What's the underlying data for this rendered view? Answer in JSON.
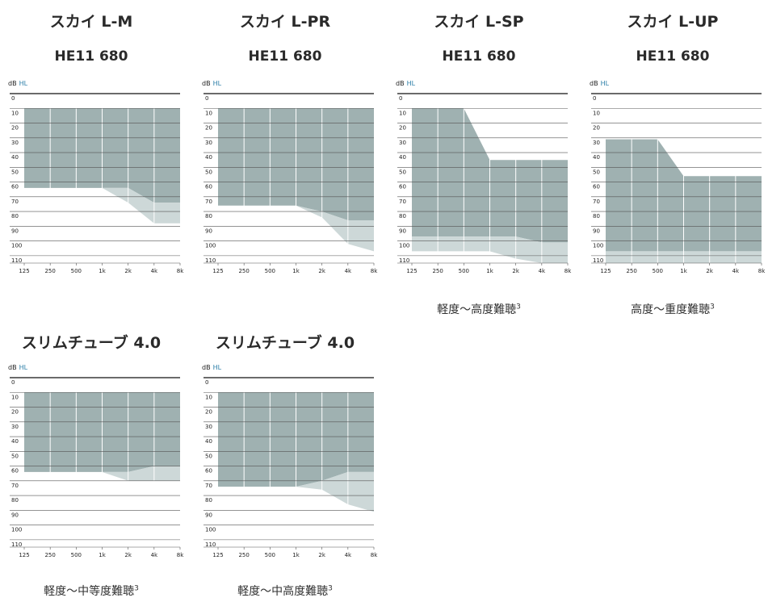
{
  "colors": {
    "primary_fill": "#9fb1b1",
    "secondary_fill": "#cdd8d8",
    "grid_line": "#555555",
    "vertical_line": "#ffffff",
    "text": "#222222"
  },
  "panels": [
    {
      "title": "スカイ L-M",
      "subtitle": "HE11 680",
      "caption": "",
      "caption_sup": ""
    },
    {
      "title": "スカイ L-PR",
      "subtitle": "HE11 680",
      "caption": "",
      "caption_sup": ""
    },
    {
      "title": "スカイ L-SP",
      "subtitle": "HE11 680",
      "caption": "軽度～高度難聴",
      "caption_sup": "3"
    },
    {
      "title": "スカイ L-UP",
      "subtitle": "HE11 680",
      "caption": "高度～重度難聴",
      "caption_sup": "3"
    },
    {
      "title": "スリムチューブ 4.0",
      "subtitle": "",
      "caption": "軽度～中等度難聴",
      "caption_sup": "3"
    },
    {
      "title": "スリムチューブ 4.0",
      "subtitle": "",
      "caption": "軽度～中高度難聴",
      "caption_sup": "3"
    }
  ],
  "chart_data": [
    {
      "type": "area",
      "title": "スカイ L-M",
      "subtitle": "HE11 680",
      "ylabel": "dB HL",
      "x_ticks": [
        "125",
        "250",
        "500",
        "1k",
        "2k",
        "4k",
        "8k"
      ],
      "y_ticks": [
        0,
        10,
        20,
        30,
        40,
        50,
        60,
        70,
        80,
        90,
        100,
        110
      ],
      "y_reversed": true,
      "ylim": [
        0,
        115
      ],
      "series": [
        {
          "role": "primary",
          "top": [
            10,
            10,
            10,
            10,
            10,
            10,
            10
          ],
          "bottom": [
            64,
            64,
            64,
            64,
            64,
            74,
            74
          ]
        },
        {
          "role": "secondary",
          "top": [
            64,
            64,
            64,
            64,
            64,
            74,
            74
          ],
          "bottom": [
            64,
            64,
            64,
            64,
            74,
            88,
            88
          ]
        }
      ]
    },
    {
      "type": "area",
      "title": "スカイ L-PR",
      "subtitle": "HE11 680",
      "ylabel": "dB HL",
      "x_ticks": [
        "125",
        "250",
        "500",
        "1k",
        "2k",
        "4k",
        "8k"
      ],
      "y_ticks": [
        0,
        10,
        20,
        30,
        40,
        50,
        60,
        70,
        80,
        90,
        100,
        110
      ],
      "y_reversed": true,
      "ylim": [
        0,
        115
      ],
      "series": [
        {
          "role": "primary",
          "top": [
            10,
            10,
            10,
            10,
            10,
            10,
            10
          ],
          "bottom": [
            76,
            76,
            76,
            76,
            80,
            86,
            86
          ]
        },
        {
          "role": "secondary",
          "top": [
            76,
            76,
            76,
            76,
            80,
            86,
            86
          ],
          "bottom": [
            76,
            76,
            76,
            76,
            84,
            102,
            107
          ]
        }
      ]
    },
    {
      "type": "area",
      "title": "スカイ L-SP",
      "subtitle": "HE11 680",
      "caption": "軽度～高度難聴³",
      "ylabel": "dB HL",
      "x_ticks": [
        "125",
        "250",
        "500",
        "1k",
        "2k",
        "4k",
        "8k"
      ],
      "y_ticks": [
        0,
        10,
        20,
        30,
        40,
        50,
        60,
        70,
        80,
        90,
        100,
        110
      ],
      "y_reversed": true,
      "ylim": [
        0,
        115
      ],
      "series": [
        {
          "role": "primary",
          "top": [
            10,
            10,
            10,
            45,
            45,
            45,
            45
          ],
          "bottom": [
            97,
            97,
            97,
            97,
            97,
            101,
            101
          ]
        },
        {
          "role": "secondary",
          "top": [
            97,
            97,
            97,
            97,
            97,
            101,
            101
          ],
          "bottom": [
            107,
            107,
            107,
            107,
            112,
            115,
            115
          ]
        }
      ]
    },
    {
      "type": "area",
      "title": "スカイ L-UP",
      "subtitle": "HE11 680",
      "caption": "高度～重度難聴³",
      "ylabel": "dB HL",
      "x_ticks": [
        "125",
        "250",
        "500",
        "1k",
        "2k",
        "4k",
        "8k"
      ],
      "y_ticks": [
        0,
        10,
        20,
        30,
        40,
        50,
        60,
        70,
        80,
        90,
        100,
        110
      ],
      "y_reversed": true,
      "ylim": [
        0,
        115
      ],
      "series": [
        {
          "role": "primary",
          "top": [
            31,
            31,
            31,
            56,
            56,
            56,
            56
          ],
          "bottom": [
            107,
            107,
            107,
            107,
            107,
            107,
            107
          ]
        },
        {
          "role": "secondary",
          "top": [
            107,
            107,
            107,
            107,
            107,
            107,
            107
          ],
          "bottom": [
            115,
            115,
            115,
            115,
            115,
            115,
            115
          ]
        }
      ]
    },
    {
      "type": "area",
      "title": "スリムチューブ 4.0",
      "caption": "軽度～中等度難聴³",
      "ylabel": "dB HL",
      "x_ticks": [
        "125",
        "250",
        "500",
        "1k",
        "2k",
        "4k",
        "8k"
      ],
      "y_ticks": [
        0,
        10,
        20,
        30,
        40,
        50,
        60,
        70,
        80,
        90,
        100,
        110
      ],
      "y_reversed": true,
      "ylim": [
        0,
        115
      ],
      "series": [
        {
          "role": "primary",
          "top": [
            10,
            10,
            10,
            10,
            10,
            10,
            10
          ],
          "bottom": [
            64,
            64,
            64,
            64,
            64,
            60,
            60
          ]
        },
        {
          "role": "secondary",
          "top": [
            64,
            64,
            64,
            64,
            64,
            60,
            60
          ],
          "bottom": [
            64,
            64,
            64,
            64,
            70,
            70,
            70
          ]
        }
      ]
    },
    {
      "type": "area",
      "title": "スリムチューブ 4.0",
      "caption": "軽度～中高度難聴³",
      "ylabel": "dB HL",
      "x_ticks": [
        "125",
        "250",
        "500",
        "1k",
        "2k",
        "4k",
        "8k"
      ],
      "y_ticks": [
        0,
        10,
        20,
        30,
        40,
        50,
        60,
        70,
        80,
        90,
        100,
        110
      ],
      "y_reversed": true,
      "ylim": [
        0,
        115
      ],
      "series": [
        {
          "role": "primary",
          "top": [
            10,
            10,
            10,
            10,
            10,
            10,
            10
          ],
          "bottom": [
            74,
            74,
            74,
            74,
            70,
            64,
            64
          ]
        },
        {
          "role": "secondary",
          "top": [
            74,
            74,
            74,
            74,
            70,
            64,
            64
          ],
          "bottom": [
            74,
            74,
            74,
            74,
            76,
            86,
            91
          ]
        }
      ]
    }
  ]
}
